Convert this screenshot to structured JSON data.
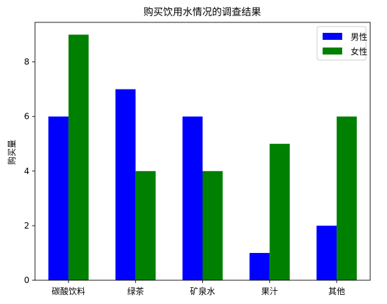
{
  "chart_data": {
    "type": "bar",
    "title": "购买饮用水情况的调查结果",
    "xlabel": "",
    "ylabel": "购买量",
    "categories": [
      "碳酸饮料",
      "绿茶",
      "矿泉水",
      "果汁",
      "其他"
    ],
    "series": [
      {
        "name": "男性",
        "values": [
          6,
          7,
          6,
          1,
          2
        ],
        "color": "#0000ff"
      },
      {
        "name": "女性",
        "values": [
          9,
          4,
          4,
          5,
          6
        ],
        "color": "#008000"
      }
    ],
    "ylim": [
      0,
      9.45
    ],
    "yticks": [
      0,
      2,
      4,
      6,
      8
    ],
    "grid": false,
    "legend_position": "top-right"
  }
}
